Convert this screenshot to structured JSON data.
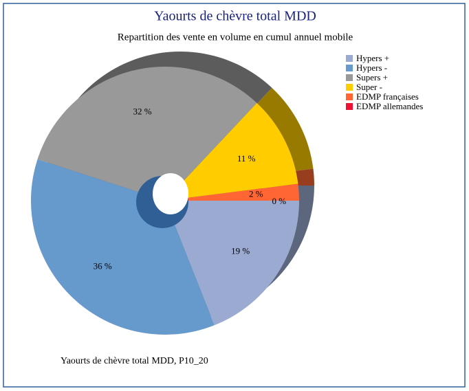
{
  "chart_data": {
    "type": "pie",
    "title": "Yaourts de chèvre total MDD",
    "subtitle": "Repartition des vente en volume en cumul annuel mobile",
    "footnote": "Yaourts de chèvre total MDD, P10_20",
    "categories": [
      "Hypers +",
      "Hypers -",
      "Supers +",
      "Super -",
      "EDMP françaises",
      "EDMP allemandes"
    ],
    "values": [
      19,
      36,
      32,
      11,
      2,
      0
    ],
    "value_labels": [
      "19 %",
      "36 %",
      "32 %",
      "11 %",
      "2 %",
      "0 %"
    ],
    "colors": [
      "#9aaad0",
      "#6699cc",
      "#999999",
      "#ffcc00",
      "#ff6633",
      "#ee1133"
    ],
    "legend": "right"
  }
}
